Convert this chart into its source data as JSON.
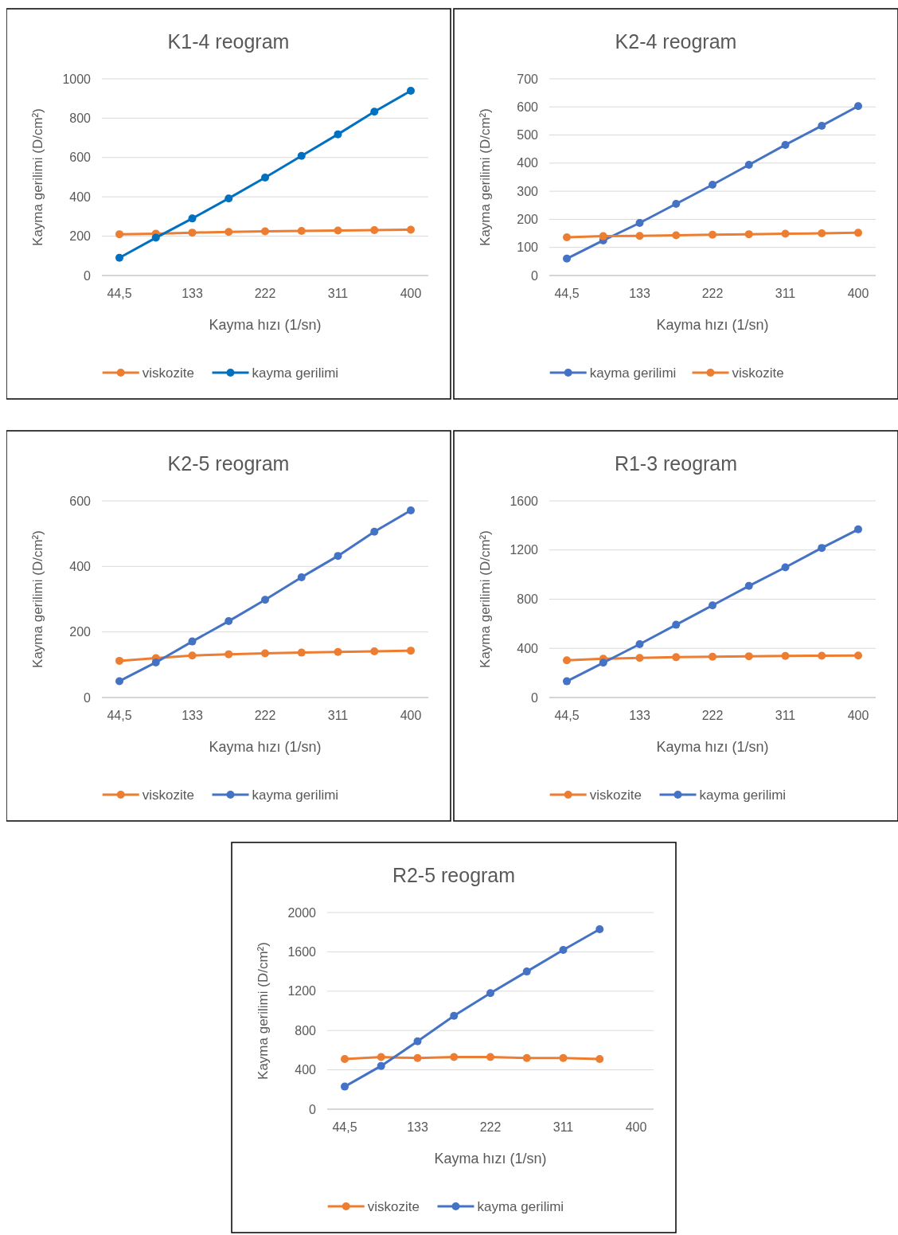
{
  "chart_data": [
    {
      "type": "line",
      "title": "K1-4 reogram",
      "xlabel": "Kayma hızı (1/sn)",
      "ylabel": "Kayma gerilimi (D/cm²)",
      "categories": [
        "44,5",
        null,
        "133",
        null,
        "222",
        null,
        "311",
        null,
        "400"
      ],
      "ylim": [
        0,
        1000
      ],
      "yticks": [
        0,
        200,
        400,
        600,
        800,
        1000
      ],
      "grid": "y",
      "legend": "bottom",
      "marker": "circle",
      "series": [
        {
          "name": "viskozite",
          "color": "#ed7d31",
          "values": [
            210,
            213,
            218,
            222,
            225,
            227,
            229,
            231,
            233
          ]
        },
        {
          "name": "kayma gerilimi",
          "color": "#0070c0",
          "values": [
            90,
            192,
            290,
            392,
            498,
            608,
            718,
            833,
            939
          ]
        }
      ]
    },
    {
      "type": "line",
      "title": "K2-4 reogram",
      "xlabel": "Kayma hızı (1/sn)",
      "ylabel": "Kayma gerilimi (D/cm²)",
      "categories": [
        "44,5",
        null,
        "133",
        null,
        "222",
        null,
        "311",
        null,
        "400"
      ],
      "ylim": [
        0,
        700
      ],
      "yticks": [
        0,
        100,
        200,
        300,
        400,
        500,
        600,
        700
      ],
      "grid": "y",
      "legend": "bottom",
      "marker": "circle",
      "series": [
        {
          "name": "kayma gerilimi",
          "color": "#4472c4",
          "values": [
            60,
            125,
            187,
            255,
            323,
            394,
            465,
            533,
            603
          ]
        },
        {
          "name": "viskozite",
          "color": "#ed7d31",
          "values": [
            136,
            140,
            141,
            143,
            145,
            147,
            149,
            150,
            152
          ]
        }
      ]
    },
    {
      "type": "line",
      "title": "K2-5 reogram",
      "xlabel": "Kayma hızı (1/sn)",
      "ylabel": "Kayma gerilimi (D/cm²)",
      "categories": [
        "44,5",
        null,
        "133",
        null,
        "222",
        null,
        "311",
        null,
        "400"
      ],
      "ylim": [
        0,
        600
      ],
      "yticks": [
        0,
        200,
        400,
        600
      ],
      "grid": "y",
      "legend": "bottom",
      "marker": "circle",
      "series": [
        {
          "name": "viskozite",
          "color": "#ed7d31",
          "values": [
            112,
            120,
            128,
            132,
            135,
            137,
            139,
            141,
            143
          ]
        },
        {
          "name": "kayma gerilimi",
          "color": "#4472c4",
          "values": [
            50,
            107,
            171,
            233,
            298,
            367,
            432,
            506,
            571
          ]
        }
      ]
    },
    {
      "type": "line",
      "title": "R1-3 reogram",
      "xlabel": "Kayma hızı (1/sn)",
      "ylabel": "Kayma gerilimi (D/cm²)",
      "categories": [
        "44,5",
        null,
        "133",
        null,
        "222",
        null,
        "311",
        null,
        "400"
      ],
      "ylim": [
        0,
        1600
      ],
      "yticks": [
        0,
        400,
        800,
        1200,
        1600
      ],
      "grid": "y",
      "legend": "bottom",
      "marker": "circle",
      "series": [
        {
          "name": "viskozite",
          "color": "#ed7d31",
          "values": [
            303,
            316,
            322,
            328,
            332,
            336,
            338,
            340,
            342
          ]
        },
        {
          "name": "kayma gerilimi",
          "color": "#4472c4",
          "values": [
            132,
            283,
            434,
            592,
            750,
            908,
            1059,
            1217,
            1368
          ]
        }
      ]
    },
    {
      "type": "line",
      "title": "R2-5 reogram",
      "xlabel": "Kayma hızı (1/sn)",
      "ylabel": "Kayma gerilimi (D/cm²)",
      "categories": [
        "44,5",
        null,
        "133",
        null,
        "222",
        null,
        "311",
        null,
        "400"
      ],
      "ylim": [
        0,
        2000
      ],
      "yticks": [
        0,
        400,
        800,
        1200,
        1600,
        2000
      ],
      "grid": "y",
      "legend": "bottom",
      "marker": "circle",
      "series": [
        {
          "name": "viskozite",
          "color": "#ed7d31",
          "values": [
            510,
            530,
            520,
            530,
            530,
            520,
            520,
            510,
            null
          ]
        },
        {
          "name": "kayma gerilimi",
          "color": "#4472c4",
          "values": [
            230,
            440,
            690,
            950,
            1180,
            1400,
            1620,
            1830,
            null
          ]
        }
      ]
    }
  ]
}
